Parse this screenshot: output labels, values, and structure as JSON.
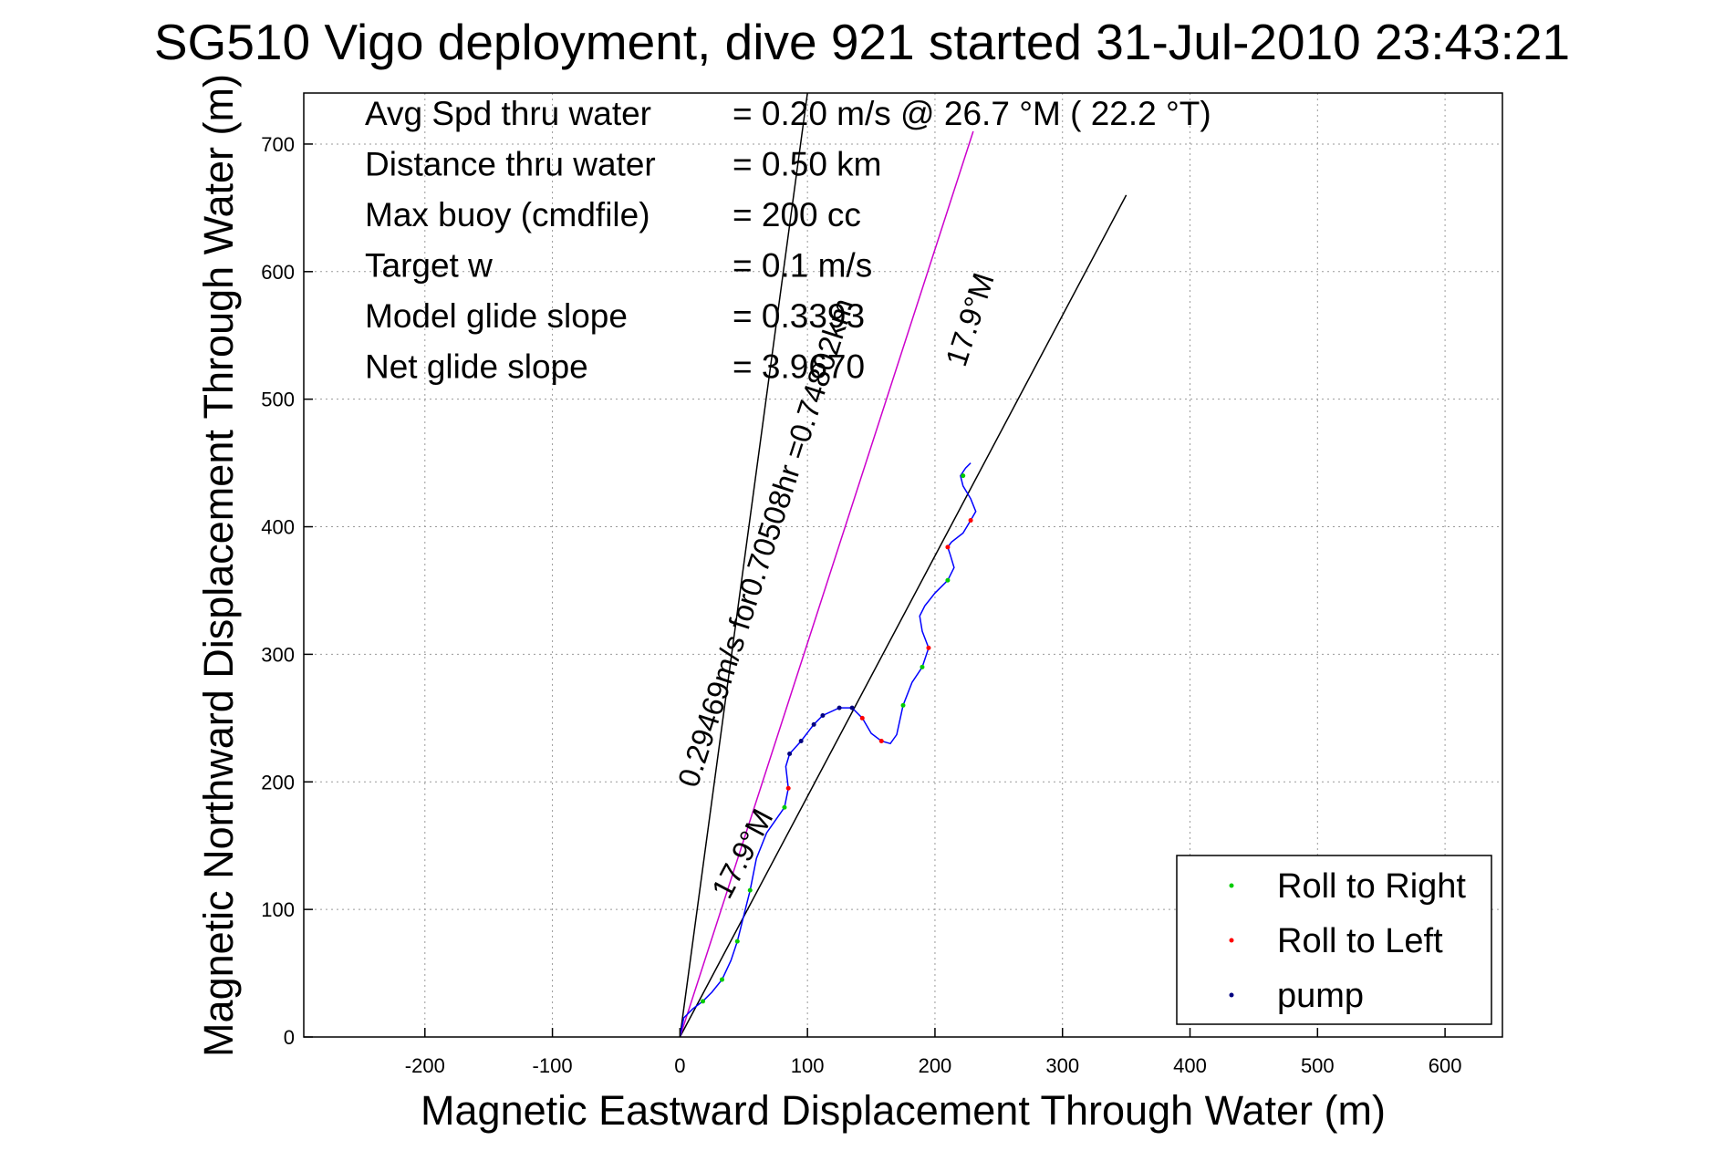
{
  "chart_data": {
    "type": "line",
    "title": "SG510 Vigo deployment, dive 921 started 31-Jul-2010 23:43:21",
    "xlabel": "Magnetic Eastward Displacement Through Water (m)",
    "ylabel": "Magnetic Northward Displacement Through Water (m)",
    "xlim": [
      -295,
      645
    ],
    "ylim": [
      0,
      740
    ],
    "xticks": [
      -200,
      -100,
      0,
      100,
      200,
      300,
      400,
      500,
      600
    ],
    "yticks": [
      0,
      100,
      200,
      300,
      400,
      500,
      600,
      700
    ],
    "grid": true,
    "legend_position": "bottom-right",
    "stats": [
      {
        "label": "Avg Spd thru water",
        "value": "=  0.20 m/s @  26.7 °M ( 22.2 °T)"
      },
      {
        "label": "Distance thru water",
        "value": "=  0.50 km"
      },
      {
        "label": "Max buoy (cmdfile)",
        "value": "= 200 cc"
      },
      {
        "label": "Target w",
        "value": "= 0.1 m/s"
      },
      {
        "label": "Model glide slope",
        "value": "= 0.3393"
      },
      {
        "label": "Net glide slope",
        "value": "= 3.9670"
      }
    ],
    "annotations": [
      {
        "text": "17.9°M",
        "x": 235,
        "y": 560,
        "angle": 17.9
      },
      {
        "text": "0.29469m/s for0.70508hr =0.74802km",
        "x": 75,
        "y": 385,
        "angle": 17.9
      },
      {
        "text": "17.9°M",
        "x": 56,
        "y": 140,
        "angle": 28
      }
    ],
    "reference_lines": [
      {
        "name": "heading-line-a",
        "color": "#000000",
        "x": [
          0,
          100
        ],
        "y": [
          0,
          740
        ]
      },
      {
        "name": "heading-line-b",
        "color": "#000000",
        "x": [
          0,
          350
        ],
        "y": [
          0,
          660
        ]
      },
      {
        "name": "net-track",
        "color": "#cc00cc",
        "x": [
          0,
          230
        ],
        "y": [
          0,
          710
        ]
      }
    ],
    "track": {
      "color": "#0000ff",
      "x": [
        0,
        3,
        10,
        18,
        25,
        33,
        40,
        45,
        50,
        55,
        60,
        68,
        75,
        82,
        85,
        83,
        86,
        95,
        105,
        112,
        125,
        135,
        143,
        150,
        158,
        165,
        170,
        175,
        182,
        190,
        195,
        190,
        188,
        192,
        200,
        210,
        215,
        212,
        210,
        213,
        222,
        228,
        232,
        228,
        222,
        220,
        224,
        228
      ],
      "y": [
        0,
        15,
        22,
        28,
        35,
        45,
        60,
        75,
        95,
        115,
        140,
        160,
        170,
        180,
        195,
        212,
        222,
        232,
        245,
        252,
        258,
        258,
        250,
        238,
        232,
        230,
        237,
        260,
        278,
        290,
        305,
        318,
        330,
        338,
        348,
        358,
        368,
        378,
        384,
        388,
        395,
        405,
        412,
        422,
        432,
        440,
        446,
        450
      ]
    },
    "series": [
      {
        "name": "Roll to Right",
        "color": "#00cc00",
        "x": [
          18,
          33,
          45,
          55,
          82,
          175,
          190,
          210,
          222
        ],
        "y": [
          28,
          45,
          75,
          115,
          180,
          260,
          290,
          358,
          440
        ]
      },
      {
        "name": "Roll to Left",
        "color": "#ff0000",
        "x": [
          85,
          143,
          158,
          195,
          210,
          228
        ],
        "y": [
          195,
          250,
          232,
          305,
          384,
          405
        ]
      },
      {
        "name": "pump",
        "color": "#000080",
        "x": [
          86,
          95,
          105,
          112,
          125,
          135
        ],
        "y": [
          222,
          232,
          245,
          252,
          258,
          258
        ]
      }
    ]
  }
}
